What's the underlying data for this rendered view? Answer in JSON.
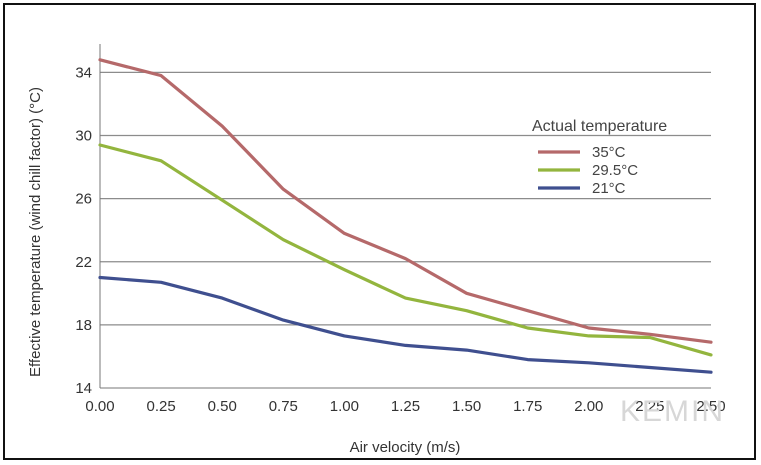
{
  "chart_data": {
    "type": "line",
    "title": "",
    "xlabel": "Air velocity (m/s)",
    "ylabel": "Effective temperature (wind chill factor) (°C)",
    "x": [
      0.0,
      0.25,
      0.5,
      0.75,
      1.0,
      1.25,
      1.5,
      1.75,
      2.0,
      2.25,
      2.5
    ],
    "x_tick_labels": [
      "0.00",
      "0.25",
      "0.50",
      "0.75",
      "1.00",
      "1.25",
      "1.50",
      "1.75",
      "2.00",
      "2.25",
      "2.50"
    ],
    "y_ticks": [
      14,
      18,
      22,
      26,
      30,
      34
    ],
    "xlim": [
      0,
      2.5
    ],
    "ylim": [
      14,
      35.8
    ],
    "grid": "horizontal",
    "legend": {
      "title": "Actual temperature",
      "position": "right"
    },
    "series": [
      {
        "name": "35°C",
        "color": "#b5696a",
        "values": [
          34.8,
          33.8,
          30.6,
          26.6,
          23.8,
          22.2,
          20.0,
          18.9,
          17.8,
          17.4,
          16.9
        ]
      },
      {
        "name": "29.5°C",
        "color": "#93b53e",
        "values": [
          29.4,
          28.4,
          25.9,
          23.4,
          21.5,
          19.7,
          18.9,
          17.8,
          17.3,
          17.2,
          16.1
        ]
      },
      {
        "name": "21°C",
        "color": "#3f4f8f",
        "values": [
          21.0,
          20.7,
          19.7,
          18.3,
          17.3,
          16.7,
          16.4,
          15.8,
          15.6,
          15.3,
          15.0
        ]
      }
    ],
    "watermark": "KEMIN"
  }
}
